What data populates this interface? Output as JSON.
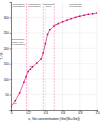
{
  "chart_data": {
    "type": "line",
    "x_label": "x, Ge concentration (Ge/(Si+Ge))",
    "y_label": "T / K",
    "x": [
      0.0,
      0.05,
      0.1,
      0.15,
      0.175,
      0.2,
      0.225,
      0.25,
      0.3,
      0.35,
      0.375,
      0.4,
      0.425,
      0.45,
      0.5,
      0.55,
      0.6,
      0.65,
      0.7,
      0.75,
      0.8,
      0.85,
      0.9,
      0.95,
      1.0
    ],
    "values": [
      10,
      30,
      55,
      90,
      108,
      125,
      132,
      140,
      152,
      165,
      185,
      215,
      245,
      260,
      272,
      280,
      286,
      291,
      296,
      300,
      304,
      307,
      310,
      312,
      314
    ],
    "color": "#cc0066",
    "marker": "square",
    "xlim": [
      0,
      1.0
    ],
    "ylim": [
      0,
      350
    ],
    "xticks": [
      0,
      0.2,
      0.4,
      0.6,
      0.8,
      {
        "value": 1.0,
        "label": "1.0"
      }
    ],
    "yticks": [
      50,
      100,
      150,
      200,
      250,
      300
    ],
    "grid": true,
    "vlines": [
      {
        "x": 0.18,
        "color": "#ff69b4",
        "line_style": "dashed"
      },
      {
        "x": 0.375,
        "color": "#ff69b4",
        "line_style": "dashed"
      },
      {
        "x": 0.503,
        "color": "#ff69b4",
        "line_style": "dashed"
      }
    ],
    "curve_labels": [
      {
        "text": "TC",
        "x": 0.03,
        "y": 18,
        "color": "#cc0066"
      },
      {
        "text": "TC",
        "x": 0.21,
        "y": 138,
        "color": "#cc0066"
      },
      {
        "text": "TC",
        "x": 0.505,
        "y": 275,
        "color": "#cc0066"
      },
      {
        "text": "TC",
        "x": 0.76,
        "y": 302,
        "color": "#cc0066"
      }
    ],
    "region_label": {
      "text": "Orthorhombic\nGd5Si4-type\n(ferromagnetic)",
      "x": 0.01,
      "y": 220,
      "color": "#333333"
    },
    "phase_labels": [
      {
        "text": "paramagnetic",
        "x": 0.09,
        "y": 347,
        "color": "#333333"
      },
      {
        "text": "paramagnetic",
        "x": 0.275,
        "y": 347,
        "color": "#333333"
      },
      {
        "text": "Gd5Si2Ge2",
        "x": 0.44,
        "y": 347,
        "color": "#333333"
      },
      {
        "text": "paramagnetic",
        "x": 0.75,
        "y": 347,
        "color": "#333333"
      },
      {
        "text": "ferromagnetic",
        "x": 0.09,
        "y": 338,
        "color": "#333333"
      },
      {
        "text": "ferromagnetic",
        "x": 0.275,
        "y": 338,
        "color": "#333333"
      },
      {
        "text": "struct.",
        "x": 0.44,
        "y": 338,
        "color": "#333333"
      },
      {
        "text": "ferromagnetic",
        "x": 0.75,
        "y": 338,
        "color": "#333333"
      }
    ]
  }
}
